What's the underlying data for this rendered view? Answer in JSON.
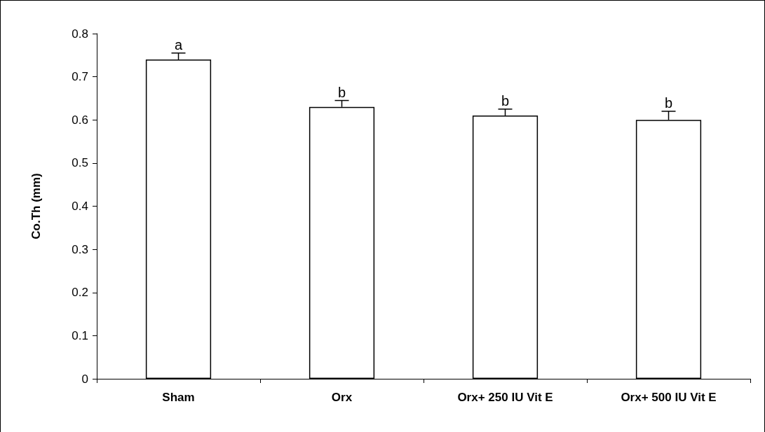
{
  "chart_data": {
    "type": "bar",
    "ylabel": "Co.Th (mm)",
    "categories": [
      "Sham",
      "Orx",
      "Orx+ 250 IU Vit E",
      "Orx+ 500 IU Vit E"
    ],
    "values": [
      0.74,
      0.63,
      0.61,
      0.6
    ],
    "errors": [
      0.015,
      0.015,
      0.015,
      0.02
    ],
    "color": "#ffffff",
    "ylim": [
      0,
      0.8
    ],
    "yticks": [
      0,
      0.1,
      0.2,
      0.3,
      0.4,
      0.5,
      0.6,
      0.7,
      0.8
    ],
    "grid": false,
    "annotations": [
      {
        "text": "a",
        "x": "Sham",
        "y": 0.755
      },
      {
        "text": "b",
        "x": "Orx",
        "y": 0.645
      },
      {
        "text": "b",
        "x": "Orx+ 250 IU Vit E",
        "y": 0.625
      },
      {
        "text": "b",
        "x": "Orx+ 500 IU Vit E",
        "y": 0.62
      }
    ]
  }
}
